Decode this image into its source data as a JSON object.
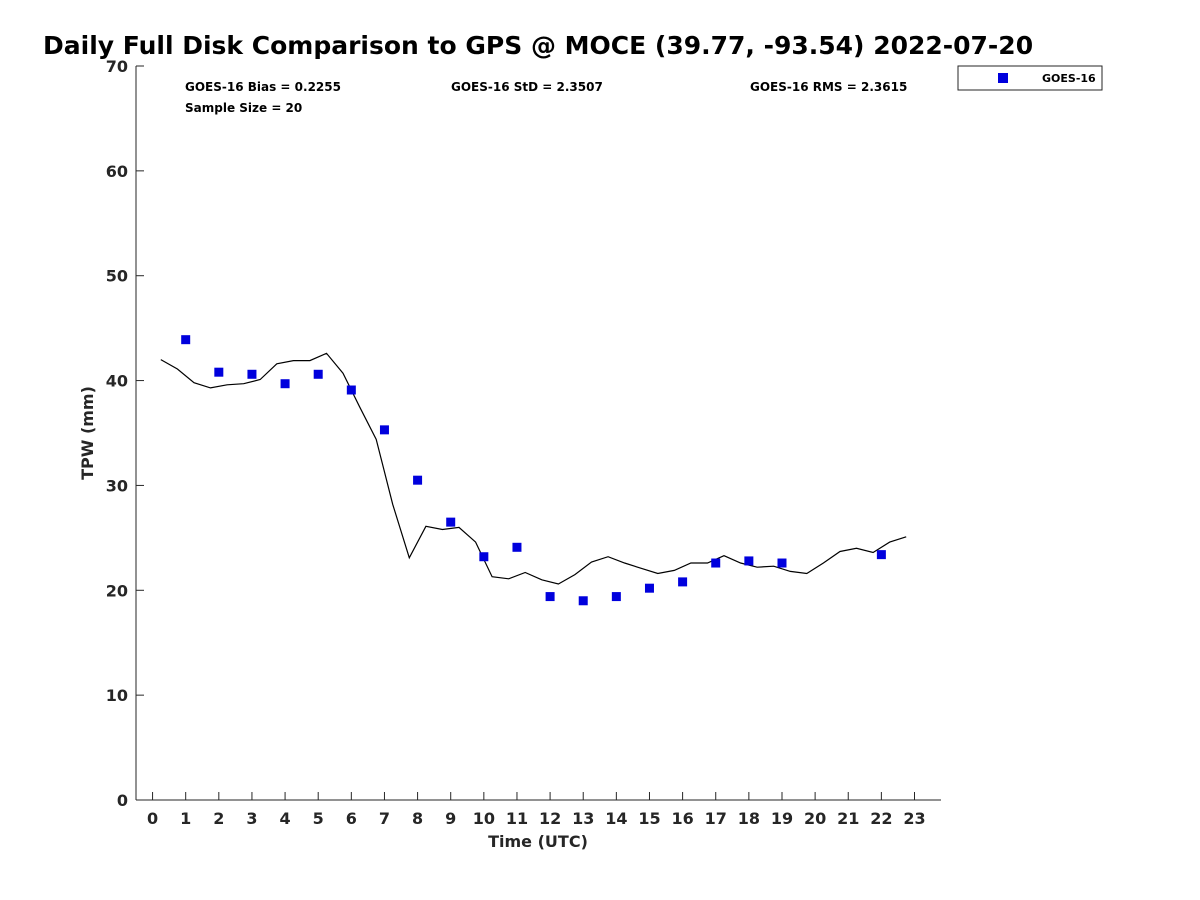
{
  "chart_data": {
    "type": "scatter",
    "title": "Daily Full Disk Comparison to GPS @ MOCE (39.77, -93.54) 2022-07-20",
    "xlabel": "Time (UTC)",
    "ylabel": "TPW (mm)",
    "xlim": [
      -0.5,
      23.8
    ],
    "ylim": [
      0,
      70
    ],
    "x_ticks": [
      0,
      1,
      2,
      3,
      4,
      5,
      6,
      7,
      8,
      9,
      10,
      11,
      12,
      13,
      14,
      15,
      16,
      17,
      18,
      19,
      20,
      21,
      22,
      23
    ],
    "y_ticks": [
      0,
      10,
      20,
      30,
      40,
      50,
      60,
      70
    ],
    "grid": false,
    "legend_position": "top-right",
    "stats": {
      "bias": "GOES-16 Bias = 0.2255",
      "std": "GOES-16 StD = 2.3507",
      "rms": "GOES-16 RMS = 2.3615",
      "sample": "Sample Size = 20"
    },
    "series": [
      {
        "name": "GOES-16",
        "kind": "scatter",
        "marker": "square",
        "color": "#0000dd",
        "x": [
          1,
          2,
          3,
          4,
          5,
          6,
          7,
          8,
          9,
          10,
          11,
          12,
          13,
          14,
          15,
          16,
          17,
          18,
          19,
          22
        ],
        "y": [
          43.9,
          40.8,
          40.6,
          39.7,
          40.6,
          39.1,
          35.3,
          30.5,
          26.5,
          23.2,
          24.1,
          19.4,
          19.0,
          19.4,
          20.2,
          20.8,
          22.6,
          22.8,
          22.6,
          23.4
        ]
      },
      {
        "kind": "line",
        "color": "#000000",
        "x": [
          0.25,
          0.75,
          1.25,
          1.75,
          2.25,
          2.75,
          3.25,
          3.75,
          4.25,
          4.75,
          5.25,
          5.75,
          6.25,
          6.75,
          7.25,
          7.75,
          8.25,
          8.75,
          9.25,
          9.75,
          10.25,
          10.75,
          11.25,
          11.75,
          12.25,
          12.75,
          13.25,
          13.75,
          14.25,
          14.75,
          15.25,
          15.75,
          16.25,
          16.75,
          17.25,
          17.75,
          18.25,
          18.75,
          19.25,
          19.75,
          20.25,
          20.75,
          21.25,
          21.75,
          22.25,
          22.75
        ],
        "y": [
          42.0,
          41.1,
          39.8,
          39.3,
          39.6,
          39.7,
          40.1,
          41.6,
          41.9,
          41.9,
          42.6,
          40.7,
          37.5,
          34.4,
          28.2,
          23.1,
          26.1,
          25.8,
          26.0,
          24.6,
          21.3,
          21.1,
          21.7,
          21.0,
          20.6,
          21.5,
          22.7,
          23.2,
          22.6,
          22.1,
          21.6,
          21.9,
          22.6,
          22.6,
          23.3,
          22.6,
          22.2,
          22.3,
          21.8,
          21.6,
          22.6,
          23.7,
          24.0,
          23.6,
          24.6,
          25.1
        ]
      }
    ]
  }
}
